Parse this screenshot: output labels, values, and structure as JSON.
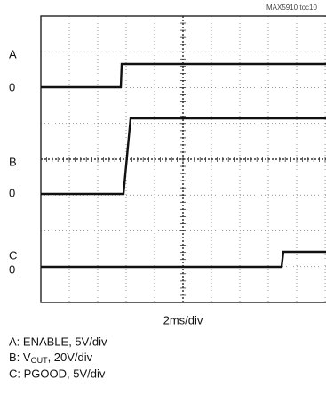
{
  "header": {
    "code": "MAX5910 toc10"
  },
  "channels": [
    {
      "name": "A",
      "zero": "0"
    },
    {
      "name": "B",
      "zero": "0"
    },
    {
      "name": "C",
      "zero": "0"
    }
  ],
  "time_scale": "2ms/div",
  "legend": [
    {
      "text": "A: ENABLE, 5V/div"
    },
    {
      "prefix": "B: V",
      "sub": "OUT",
      "suffix": ", 20V/div"
    },
    {
      "text": "C: PGOOD, 5V/div"
    }
  ]
}
